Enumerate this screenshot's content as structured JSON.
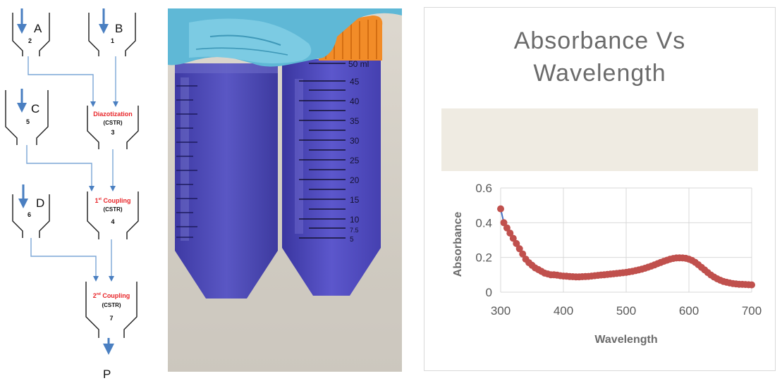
{
  "flowchart": {
    "feeds": [
      {
        "letter": "A",
        "number": "2"
      },
      {
        "letter": "B",
        "number": "1"
      },
      {
        "letter": "C",
        "number": "5"
      },
      {
        "letter": "D",
        "number": "6"
      }
    ],
    "reactors": [
      {
        "name": "Diazotization",
        "type": "(CSTR)",
        "number": "3"
      },
      {
        "name_prefix": "1",
        "superscript": "st",
        "name": " Coupling",
        "type": "(CSTR)",
        "number": "4"
      },
      {
        "name_prefix": "2",
        "superscript": "nd",
        "name": " Coupling",
        "type": "(CSTR)",
        "number": "7"
      }
    ],
    "product": "P",
    "colors": {
      "arrow": "#4a7fc1",
      "line": "#7aa6d6",
      "reactor_label": "#e8262a"
    }
  },
  "photo": {
    "scale_labels": [
      "50 ml",
      "45",
      "40",
      "35",
      "30",
      "25",
      "20",
      "15",
      "10",
      "7.5",
      "5"
    ],
    "colors": {
      "glove": "#5fb8d6",
      "cap": "#f28c28",
      "liquid": "#4a46b8"
    }
  },
  "chart_data": {
    "type": "scatter",
    "title": "Absorbance Vs Wavelength",
    "xlabel": "Wavelength",
    "ylabel": "Absorbance",
    "xlim": [
      300,
      700
    ],
    "ylim": [
      0,
      0.6
    ],
    "xticks": [
      300,
      400,
      500,
      600,
      700
    ],
    "yticks": [
      0,
      0.2,
      0.4,
      0.6
    ],
    "grid": true,
    "series": [
      {
        "color": "#c0504d",
        "line_color": "#4472c4",
        "x": [
          300,
          305,
          310,
          315,
          320,
          325,
          330,
          335,
          340,
          345,
          350,
          355,
          360,
          365,
          370,
          375,
          380,
          385,
          390,
          395,
          400,
          405,
          410,
          415,
          420,
          425,
          430,
          435,
          440,
          445,
          450,
          455,
          460,
          465,
          470,
          475,
          480,
          485,
          490,
          495,
          500,
          505,
          510,
          515,
          520,
          525,
          530,
          535,
          540,
          545,
          550,
          555,
          560,
          565,
          570,
          575,
          580,
          585,
          590,
          595,
          600,
          605,
          610,
          615,
          620,
          625,
          630,
          635,
          640,
          645,
          650,
          655,
          660,
          665,
          670,
          675,
          680,
          685,
          690,
          695,
          700
        ],
        "y": [
          0.48,
          0.4,
          0.37,
          0.34,
          0.31,
          0.28,
          0.25,
          0.22,
          0.19,
          0.17,
          0.155,
          0.14,
          0.13,
          0.12,
          0.11,
          0.105,
          0.1,
          0.1,
          0.098,
          0.095,
          0.093,
          0.092,
          0.09,
          0.089,
          0.088,
          0.088,
          0.089,
          0.09,
          0.091,
          0.093,
          0.095,
          0.097,
          0.099,
          0.1,
          0.102,
          0.104,
          0.106,
          0.108,
          0.11,
          0.112,
          0.114,
          0.117,
          0.12,
          0.124,
          0.128,
          0.133,
          0.138,
          0.144,
          0.15,
          0.157,
          0.164,
          0.171,
          0.178,
          0.184,
          0.19,
          0.194,
          0.197,
          0.198,
          0.197,
          0.195,
          0.19,
          0.183,
          0.172,
          0.158,
          0.143,
          0.128,
          0.113,
          0.099,
          0.087,
          0.077,
          0.069,
          0.062,
          0.057,
          0.053,
          0.05,
          0.048,
          0.046,
          0.045,
          0.044,
          0.043,
          0.042
        ]
      }
    ]
  }
}
